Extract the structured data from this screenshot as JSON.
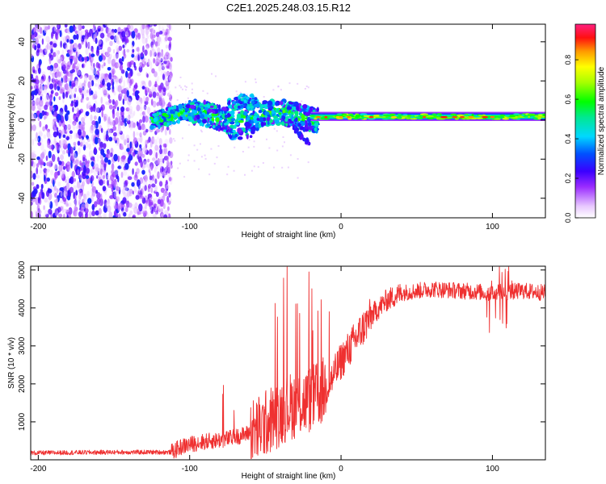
{
  "chart_data": [
    {
      "type": "heatmap",
      "title": "C2E1.2025.248.03.15.R12",
      "xlabel": "Height of straight line (km)",
      "ylabel": "Frequency (Hz)",
      "xlim": [
        -205,
        135
      ],
      "ylim": [
        -50,
        49
      ],
      "xticks": [
        -200,
        -100,
        0,
        100
      ],
      "yticks": [
        -40,
        -20,
        0,
        20,
        40
      ],
      "colorbar": {
        "label": "Normalized spectral amplitude",
        "range": [
          0,
          0.98
        ],
        "ticks": [
          "0.0",
          "0.2",
          "0.4",
          "0.6",
          "0.8"
        ]
      },
      "regions": [
        {
          "name": "scattered low-amplitude noise",
          "x": [
            -205,
            -112
          ],
          "y": [
            -50,
            49
          ],
          "amplitude": 0.15
        },
        {
          "name": "turbulent band",
          "x": [
            -112,
            -20
          ],
          "y": [
            -6,
            12
          ],
          "amplitude": 0.4
        },
        {
          "name": "steady narrow band",
          "x": [
            -20,
            135
          ],
          "y": [
            0,
            3
          ],
          "amplitude": 0.55
        },
        {
          "name": "peak amplitude features",
          "x": [
            -15,
            100
          ],
          "y": [
            1,
            2
          ],
          "amplitude": 0.9
        }
      ]
    },
    {
      "type": "line",
      "title": "",
      "xlabel": "Height of straight line (km)",
      "ylabel": "SNR (10 * v/v)",
      "xlim": [
        -205,
        135
      ],
      "ylim": [
        0,
        5100
      ],
      "xticks": [
        -200,
        -100,
        0,
        100
      ],
      "yticks": [
        1000,
        2000,
        3000,
        4000,
        5000
      ],
      "color": "#ef3030",
      "series": [
        {
          "name": "SNR",
          "x": [
            -205,
            -150,
            -112,
            -105,
            -95,
            -85,
            -75,
            -65,
            -55,
            -45,
            -35,
            -25,
            -15,
            -10,
            -5,
            0,
            10,
            20,
            30,
            40,
            60,
            80,
            100,
            120,
            135
          ],
          "values": [
            180,
            200,
            200,
            350,
            450,
            500,
            550,
            650,
            800,
            1100,
            1400,
            1500,
            1700,
            1900,
            2200,
            2600,
            3200,
            3800,
            4200,
            4400,
            4500,
            4450,
            4400,
            4450,
            4400
          ]
        }
      ]
    }
  ]
}
